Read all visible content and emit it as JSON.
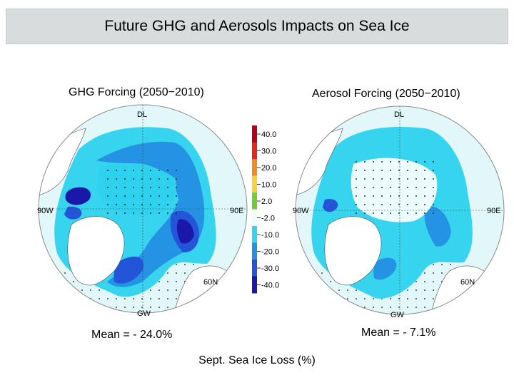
{
  "title": "Future GHG and Aerosols Impacts on Sea Ice",
  "panels": [
    {
      "title": "GHG Forcing (2050−2010)",
      "mean": "Mean = - 24.0%",
      "labels": {
        "top": "DL",
        "left": "90W",
        "right": "90E",
        "bottom": "GW",
        "lat": "60N"
      }
    },
    {
      "title": "Aerosol Forcing (2050−2010)",
      "mean": "Mean = - 7.1%",
      "labels": {
        "top": "DL",
        "left": "90W",
        "right": "90E",
        "bottom": "GW",
        "lat": "60N"
      }
    }
  ],
  "colorbar": {
    "ticks": [
      "40.0",
      "30.0",
      "20.0",
      "10.0",
      "2.0",
      "-2.0",
      "-10.0",
      "-20.0",
      "-30.0",
      "-40.0"
    ],
    "colors": [
      "#b5021c",
      "#e8261a",
      "#f58a24",
      "#fbd33a",
      "#6fcf3a",
      "#f0fbfb",
      "#35d3ee",
      "#2593e3",
      "#2454d8",
      "#1a18a8"
    ]
  },
  "footer": "Sept. Sea Ice Loss (%)"
}
